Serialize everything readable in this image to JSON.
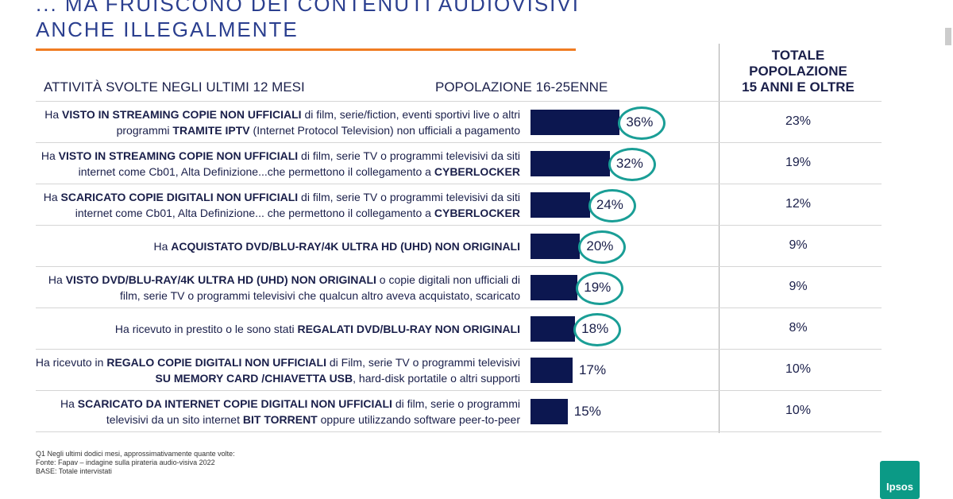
{
  "header": {
    "title": [
      "... MA FRUISCONO DEI CONTENUTI AUDIOVISIVI",
      "ANCHE ILLEGALMENTE"
    ]
  },
  "chart_data": {
    "type": "bar",
    "orientation": "horizontal",
    "column_headers": {
      "activities": "ATTIVITÀ SVOLTE NEGLI ULTIMI 12 MESI",
      "series": "POPOLAZIONE 16-25ENNE",
      "total": [
        "TOTALE",
        "POPOLAZIONE",
        "15 ANNI E OLTRE"
      ]
    },
    "categories": [
      [
        {
          "text": "Ha ",
          "bold": false
        },
        {
          "text": "VISTO IN STREAMING COPIE NON UFFICIALI",
          "bold": true
        },
        {
          "text": " di film, serie/fiction, eventi sportivi live o altri programmi ",
          "bold": false
        },
        {
          "text": "TRAMITE IPTV",
          "bold": true
        },
        {
          "text": " (Internet Protocol Television) non ufficiali a pagamento",
          "bold": false
        }
      ],
      [
        {
          "text": "Ha ",
          "bold": false
        },
        {
          "text": "VISTO IN STREAMING COPIE NON UFFICIALI",
          "bold": true
        },
        {
          "text": " di film, serie TV o programmi televisivi da siti internet come Cb01, Alta Definizione...che permettono il collegamento a ",
          "bold": false
        },
        {
          "text": "CYBERLOCKER",
          "bold": true
        }
      ],
      [
        {
          "text": "Ha ",
          "bold": false
        },
        {
          "text": "SCARICATO COPIE DIGITALI NON UFFICIALI",
          "bold": true
        },
        {
          "text": " di film, serie TV o programmi televisivi da siti internet come Cb01, Alta Definizione... che permettono il collegamento a ",
          "bold": false
        },
        {
          "text": "CYBERLOCKER",
          "bold": true
        }
      ],
      [
        {
          "text": "Ha ",
          "bold": false
        },
        {
          "text": "ACQUISTATO DVD/BLU-RAY/4K ULTRA HD (UHD) NON ORIGINALI",
          "bold": true
        }
      ],
      [
        {
          "text": "Ha ",
          "bold": false
        },
        {
          "text": "VISTO DVD/BLU-RAY/4K ULTRA HD (UHD) NON ORIGINALI",
          "bold": true
        },
        {
          "text": " o copie digitali non ufficiali di film, serie TV o programmi televisivi che qualcun altro aveva acquistato, scaricato",
          "bold": false
        }
      ],
      [
        {
          "text": "Ha ricevuto in prestito o le sono stati ",
          "bold": false
        },
        {
          "text": "REGALATI DVD/BLU-RAY NON ORIGINALI",
          "bold": true
        }
      ],
      [
        {
          "text": "Ha ricevuto in ",
          "bold": false
        },
        {
          "text": "REGALO COPIE DIGITALI NON UFFICIALI",
          "bold": true
        },
        {
          "text": " di Film, serie TV o programmi televisivi ",
          "bold": false
        },
        {
          "text": "SU MEMORY CARD /CHIAVETTA USB",
          "bold": true
        },
        {
          "text": ", hard-disk portatile o altri supporti",
          "bold": false
        }
      ],
      [
        {
          "text": "Ha ",
          "bold": false
        },
        {
          "text": "SCARICATO DA INTERNET COPIE DIGITALI NON UFFICIALI",
          "bold": true
        },
        {
          "text": " di film, serie o programmi televisivi da un sito internet ",
          "bold": false
        },
        {
          "text": "BIT TORRENT",
          "bold": true
        },
        {
          "text": " oppure utilizzando software peer-to-peer",
          "bold": false
        }
      ]
    ],
    "values": [
      36,
      32,
      24,
      20,
      19,
      18,
      17,
      15
    ],
    "value_labels": [
      "36%",
      "32%",
      "24%",
      "20%",
      "19%",
      "18%",
      "17%",
      "15%"
    ],
    "highlighted": [
      true,
      true,
      true,
      true,
      true,
      true,
      false,
      false
    ],
    "color": "#0c1750",
    "highlight_color": "#1a9e96",
    "xlim": [
      0,
      100
    ],
    "total_values": [
      23,
      19,
      12,
      9,
      9,
      8,
      10,
      10
    ],
    "total_labels": [
      "23%",
      "19%",
      "12%",
      "9%",
      "9%",
      "8%",
      "10%",
      "10%"
    ]
  },
  "footnotes": [
    "Q1 Negli ultimi dodici mesi, approssimativamente quante volte:",
    "Fonte: Fapav – indagine sulla pirateria audio-visiva 2022",
    "BASE: Totale intervistati"
  ],
  "logo": "Ipsos"
}
